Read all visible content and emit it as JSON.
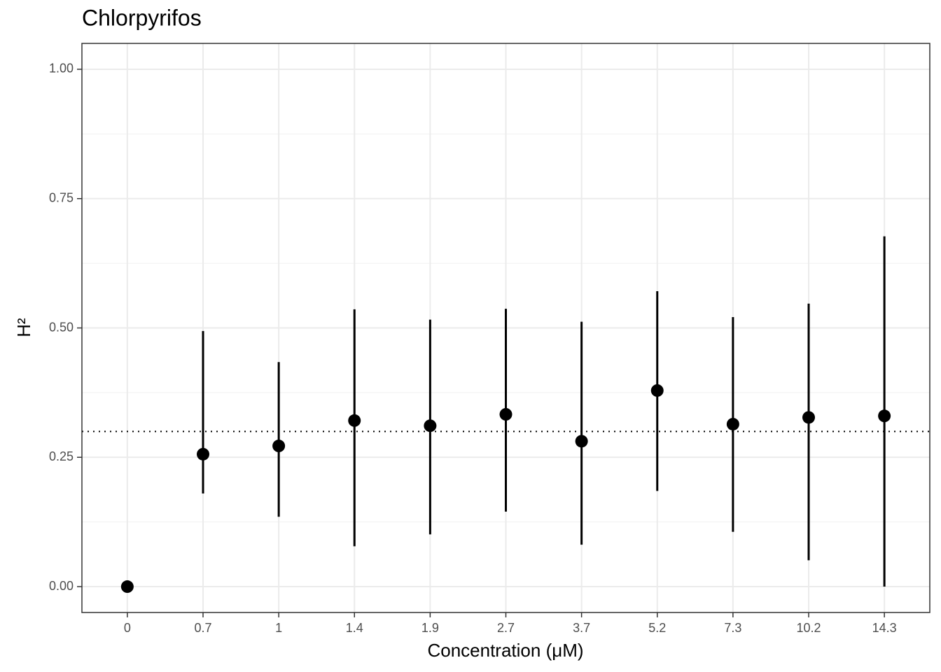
{
  "chart_data": {
    "type": "pointrange",
    "title": "Chlorpyrifos",
    "x_label": "Concentration (μM)",
    "y_label": "H²",
    "categories": [
      "0",
      "0.7",
      "1",
      "1.4",
      "1.9",
      "2.7",
      "3.7",
      "5.2",
      "7.3",
      "10.2",
      "14.3"
    ],
    "values": [
      0,
      0.256,
      0.272,
      0.321,
      0.311,
      0.333,
      0.281,
      0.379,
      0.314,
      0.327,
      0.33
    ],
    "lower": [
      null,
      0.18,
      0.135,
      0.078,
      0.101,
      0.145,
      0.081,
      0.185,
      0.106,
      0.051,
      0.0
    ],
    "upper": [
      null,
      0.494,
      0.434,
      0.536,
      0.516,
      0.537,
      0.512,
      0.571,
      0.521,
      0.547,
      0.677
    ],
    "color": "#000000",
    "reference_line": 0.3,
    "ylim": [
      -0.05,
      1.05
    ],
    "yticks": [
      {
        "value": 0,
        "label": "0.00"
      },
      {
        "value": 0.25,
        "label": "0.25"
      },
      {
        "value": 0.5,
        "label": "0.50"
      },
      {
        "value": 0.75,
        "label": "0.75"
      },
      {
        "value": 1,
        "label": "1.00"
      }
    ],
    "grid": true
  }
}
